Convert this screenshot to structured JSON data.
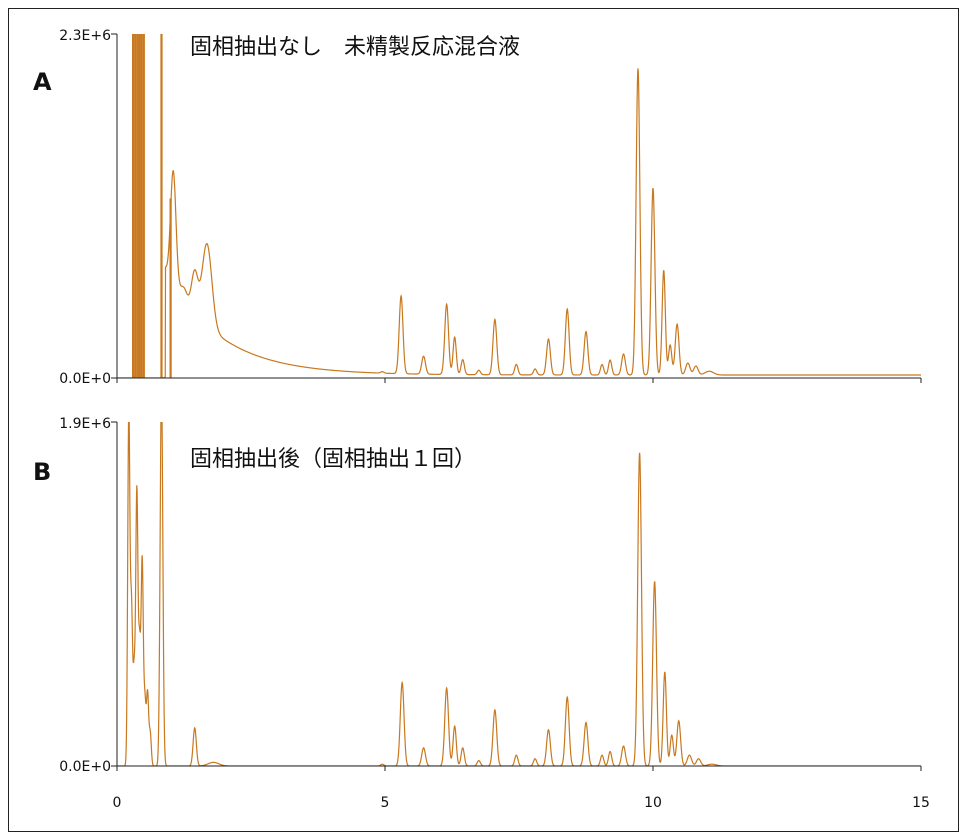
{
  "chart_data": [
    {
      "type": "line",
      "panel_label": "A",
      "title": "固相抽出なし　未精製反応混合液",
      "y_top_label": "2.3E+6",
      "y_bottom_label": "0.0E+0",
      "xlim": [
        0,
        15
      ],
      "ylim": [
        0,
        2.3
      ],
      "color": "#C8781E",
      "baseline_start": 1.3,
      "baseline_decay": 1.0,
      "spikes": [
        [
          0.3,
          3.5
        ],
        [
          0.34,
          3.0
        ],
        [
          0.38,
          3.2
        ],
        [
          0.42,
          3.4
        ],
        [
          0.46,
          3.6
        ],
        [
          0.5,
          3.3
        ],
        [
          0.83,
          3.0
        ],
        [
          1.0,
          1.2
        ]
      ],
      "peaks": [
        [
          1.05,
          0.05,
          0.75
        ],
        [
          1.25,
          0.06,
          0.08
        ],
        [
          1.45,
          0.06,
          0.27
        ],
        [
          1.68,
          0.09,
          0.55
        ],
        [
          4.95,
          0.03,
          0.01
        ],
        [
          5.3,
          0.035,
          0.52
        ],
        [
          5.72,
          0.035,
          0.12
        ],
        [
          6.15,
          0.035,
          0.47
        ],
        [
          6.3,
          0.03,
          0.25
        ],
        [
          6.45,
          0.03,
          0.1
        ],
        [
          6.75,
          0.03,
          0.03
        ],
        [
          7.05,
          0.035,
          0.37
        ],
        [
          7.45,
          0.03,
          0.07
        ],
        [
          7.8,
          0.03,
          0.04
        ],
        [
          8.05,
          0.035,
          0.24
        ],
        [
          8.4,
          0.035,
          0.44
        ],
        [
          8.75,
          0.035,
          0.29
        ],
        [
          9.05,
          0.03,
          0.07
        ],
        [
          9.2,
          0.03,
          0.1
        ],
        [
          9.45,
          0.035,
          0.14
        ],
        [
          9.72,
          0.035,
          2.05
        ],
        [
          10.0,
          0.035,
          1.25
        ],
        [
          10.2,
          0.03,
          0.7
        ],
        [
          10.32,
          0.03,
          0.2
        ],
        [
          10.45,
          0.035,
          0.34
        ],
        [
          10.65,
          0.04,
          0.08
        ],
        [
          10.8,
          0.04,
          0.06
        ],
        [
          11.05,
          0.08,
          0.025
        ]
      ]
    },
    {
      "type": "line",
      "panel_label": "B",
      "title": "固相抽出後（固相抽出１回）",
      "y_top_label": "1.9E+6",
      "y_bottom_label": "0.0E+0",
      "xlim": [
        0,
        15
      ],
      "ylim": [
        0,
        1.9
      ],
      "color": "#C8781E",
      "baseline_start": 0.0,
      "baseline_decay": 1.0,
      "spikes": [],
      "peaks": [
        [
          0.22,
          0.02,
          1.95
        ],
        [
          0.27,
          0.02,
          0.85
        ],
        [
          0.32,
          0.02,
          0.5
        ],
        [
          0.37,
          0.02,
          1.5
        ],
        [
          0.42,
          0.02,
          0.65
        ],
        [
          0.47,
          0.02,
          1.12
        ],
        [
          0.52,
          0.02,
          0.35
        ],
        [
          0.57,
          0.02,
          0.4
        ],
        [
          0.62,
          0.02,
          0.18
        ],
        [
          0.83,
          0.025,
          2.1
        ],
        [
          1.45,
          0.03,
          0.21
        ],
        [
          1.8,
          0.1,
          0.02
        ],
        [
          4.95,
          0.03,
          0.01
        ],
        [
          5.32,
          0.035,
          0.46
        ],
        [
          5.72,
          0.035,
          0.1
        ],
        [
          6.15,
          0.035,
          0.43
        ],
        [
          6.3,
          0.03,
          0.22
        ],
        [
          6.45,
          0.03,
          0.1
        ],
        [
          6.75,
          0.03,
          0.03
        ],
        [
          7.05,
          0.035,
          0.31
        ],
        [
          7.45,
          0.03,
          0.06
        ],
        [
          7.8,
          0.03,
          0.04
        ],
        [
          8.05,
          0.035,
          0.2
        ],
        [
          8.4,
          0.035,
          0.38
        ],
        [
          8.75,
          0.035,
          0.24
        ],
        [
          9.05,
          0.03,
          0.06
        ],
        [
          9.2,
          0.03,
          0.08
        ],
        [
          9.45,
          0.035,
          0.11
        ],
        [
          9.75,
          0.035,
          1.73
        ],
        [
          10.03,
          0.035,
          1.02
        ],
        [
          10.22,
          0.03,
          0.52
        ],
        [
          10.35,
          0.03,
          0.17
        ],
        [
          10.48,
          0.035,
          0.25
        ],
        [
          10.68,
          0.04,
          0.06
        ],
        [
          10.85,
          0.04,
          0.04
        ],
        [
          11.1,
          0.08,
          0.01
        ]
      ]
    }
  ],
  "x_axis": {
    "tick_values": [
      0,
      5,
      10,
      15
    ],
    "tick_labels": [
      "0",
      "5",
      "10",
      "15"
    ]
  }
}
